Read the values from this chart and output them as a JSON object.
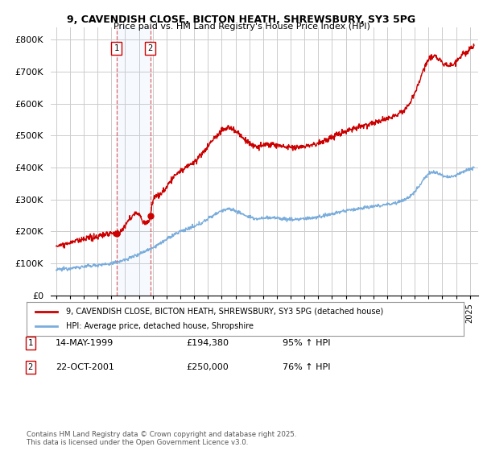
{
  "title_line1": "9, CAVENDISH CLOSE, BICTON HEATH, SHREWSBURY, SY3 5PG",
  "title_line2": "Price paid vs. HM Land Registry's House Price Index (HPI)",
  "background_color": "#ffffff",
  "grid_color": "#cccccc",
  "hpi_line_color": "#7aaddc",
  "price_line_color": "#cc0000",
  "sale1": {
    "date_num": 1999.37,
    "price": 194380,
    "label": "1",
    "hpi_pct": "95% ↑ HPI",
    "date_str": "14-MAY-1999"
  },
  "sale2": {
    "date_num": 2001.81,
    "price": 250000,
    "label": "2",
    "hpi_pct": "76% ↑ HPI",
    "date_str": "22-OCT-2001"
  },
  "yticks": [
    0,
    100000,
    200000,
    300000,
    400000,
    500000,
    600000,
    700000,
    800000
  ],
  "ytick_labels": [
    "£0",
    "£100K",
    "£200K",
    "£300K",
    "£400K",
    "£500K",
    "£600K",
    "£700K",
    "£800K"
  ],
  "xlim_start": 1994.6,
  "xlim_end": 2025.6,
  "ylim_min": 0,
  "ylim_max": 840000,
  "legend_label_red": "9, CAVENDISH CLOSE, BICTON HEATH, SHREWSBURY, SY3 5PG (detached house)",
  "legend_label_blue": "HPI: Average price, detached house, Shropshire",
  "footnote": "Contains HM Land Registry data © Crown copyright and database right 2025.\nThis data is licensed under the Open Government Licence v3.0.",
  "sale1_price_fmt": "£194,380",
  "sale2_price_fmt": "£250,000"
}
